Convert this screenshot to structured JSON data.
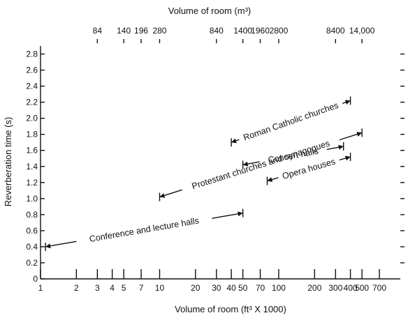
{
  "chart_data": {
    "type": "range",
    "title": "",
    "xlabel": "Volume of room (ft³ X 1000)",
    "x2label": "Volume of room (m³)",
    "ylabel": "Reverberation time (s)",
    "x_scale": "log",
    "xlim": [
      1,
      700
    ],
    "ylim": [
      0,
      2.9
    ],
    "x_ticks": [
      {
        "value": 1,
        "label": "1"
      },
      {
        "value": 2,
        "label": "2"
      },
      {
        "value": 3,
        "label": "3"
      },
      {
        "value": 4,
        "label": "4"
      },
      {
        "value": 5,
        "label": "5"
      },
      {
        "value": 7,
        "label": "7"
      },
      {
        "value": 10,
        "label": "10"
      },
      {
        "value": 20,
        "label": "20"
      },
      {
        "value": 30,
        "label": "30"
      },
      {
        "value": 40,
        "label": "40"
      },
      {
        "value": 50,
        "label": "50"
      },
      {
        "value": 70,
        "label": "70"
      },
      {
        "value": 100,
        "label": "100"
      },
      {
        "value": 200,
        "label": "200"
      },
      {
        "value": 300,
        "label": "300"
      },
      {
        "value": 400,
        "label": "400"
      },
      {
        "value": 500,
        "label": "500"
      },
      {
        "value": 700,
        "label": "700"
      }
    ],
    "x2_ticks": [
      {
        "value": 3,
        "label": "84"
      },
      {
        "value": 5,
        "label": "140"
      },
      {
        "value": 7,
        "label": "196"
      },
      {
        "value": 10,
        "label": "280"
      },
      {
        "value": 30,
        "label": "840"
      },
      {
        "value": 50,
        "label": "1400"
      },
      {
        "value": 70,
        "label": "1960"
      },
      {
        "value": 100,
        "label": "2800"
      },
      {
        "value": 300,
        "label": "8400"
      },
      {
        "value": 500,
        "label": "14,000"
      }
    ],
    "y_ticks": [
      {
        "value": 0,
        "label": "0"
      },
      {
        "value": 0.2,
        "label": "0.2"
      },
      {
        "value": 0.4,
        "label": "0.4"
      },
      {
        "value": 0.6,
        "label": "0.6"
      },
      {
        "value": 0.8,
        "label": "0.8"
      },
      {
        "value": 1.0,
        "label": "1.0"
      },
      {
        "value": 1.2,
        "label": "1.2"
      },
      {
        "value": 1.4,
        "label": "1.4"
      },
      {
        "value": 1.6,
        "label": "1.6"
      },
      {
        "value": 1.8,
        "label": "1.8"
      },
      {
        "value": 2.0,
        "label": "2.0"
      },
      {
        "value": 2.2,
        "label": "2.2"
      },
      {
        "value": 2.4,
        "label": "2.4"
      },
      {
        "value": 2.6,
        "label": "2.6"
      },
      {
        "value": 2.8,
        "label": "2.8"
      }
    ],
    "ranges": [
      {
        "label": "Conference and lecture halls",
        "x1": 1.1,
        "y1": 0.4,
        "x2": 50,
        "y2": 0.82
      },
      {
        "label": "Protestant churches and synagogues",
        "x1": 10,
        "y1": 1.02,
        "x2": 500,
        "y2": 1.82
      },
      {
        "label": "Roman Catholic churches",
        "x1": 40,
        "y1": 1.7,
        "x2": 400,
        "y2": 2.22
      },
      {
        "label": "Concert halls",
        "x1": 50,
        "y1": 1.42,
        "x2": 350,
        "y2": 1.65
      },
      {
        "label": "Opera houses",
        "x1": 80,
        "y1": 1.22,
        "x2": 400,
        "y2": 1.52
      }
    ],
    "grid": false,
    "legend": "none"
  }
}
